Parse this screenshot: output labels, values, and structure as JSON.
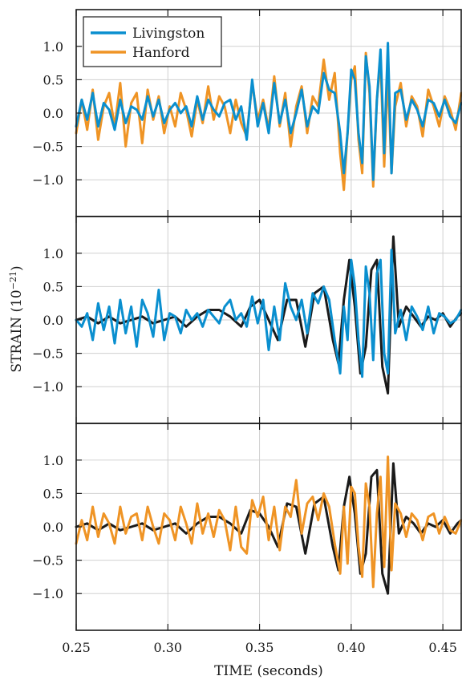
{
  "chart_data": {
    "type": "line",
    "xlabel": "TIME (seconds)",
    "ylabel": "STRAIN (10",
    "ylabel_exponent": "−21",
    "ylabel_close": ")",
    "xlim": [
      0.25,
      0.46
    ],
    "ylim": [
      -1.55,
      1.55
    ],
    "x_ticks": [
      0.25,
      0.3,
      0.35,
      0.4,
      0.45
    ],
    "x_tick_labels": [
      "0.25",
      "0.30",
      "0.35",
      "0.40",
      "0.45"
    ],
    "y_ticks": [
      1.0,
      0.5,
      0.0,
      -0.5,
      -1.0
    ],
    "y_tick_labels": [
      "1.0",
      "0.5",
      "0.0",
      "−0.5",
      "−1.0"
    ],
    "grid": true,
    "colors": {
      "livingston": "#0a8fcf",
      "hanford": "#ef9425",
      "model": "#1a1a1a"
    },
    "legend": {
      "location": "top-left",
      "entries": [
        {
          "label": "Livingston",
          "color": "#0a8fcf"
        },
        {
          "label": "Hanford",
          "color": "#ef9425"
        }
      ]
    },
    "panels": [
      {
        "series": [
          {
            "name": "Hanford",
            "color": "#ef9425",
            "x": [
              0.25,
              0.253,
              0.256,
              0.259,
              0.262,
              0.265,
              0.268,
              0.271,
              0.274,
              0.277,
              0.28,
              0.283,
              0.286,
              0.289,
              0.292,
              0.295,
              0.298,
              0.301,
              0.304,
              0.307,
              0.31,
              0.313,
              0.316,
              0.319,
              0.322,
              0.325,
              0.328,
              0.331,
              0.334,
              0.337,
              0.34,
              0.343,
              0.346,
              0.349,
              0.352,
              0.355,
              0.358,
              0.361,
              0.364,
              0.367,
              0.37,
              0.373,
              0.376,
              0.379,
              0.382,
              0.385,
              0.388,
              0.391,
              0.394,
              0.396,
              0.398,
              0.4,
              0.402,
              0.404,
              0.406,
              0.408,
              0.41,
              0.412,
              0.414,
              0.416,
              0.418,
              0.42,
              0.422,
              0.424,
              0.427,
              0.43,
              0.433,
              0.436,
              0.439,
              0.442,
              0.445,
              0.448,
              0.451,
              0.454,
              0.457,
              0.46
            ],
            "y": [
              -0.3,
              0.2,
              -0.25,
              0.35,
              -0.4,
              0.1,
              0.3,
              -0.2,
              0.45,
              -0.5,
              0.15,
              0.3,
              -0.45,
              0.35,
              -0.1,
              0.25,
              -0.3,
              0.1,
              -0.2,
              0.3,
              0.05,
              -0.35,
              0.2,
              -0.15,
              0.4,
              -0.1,
              0.25,
              0.1,
              -0.3,
              0.2,
              -0.15,
              -0.35,
              0.45,
              -0.1,
              0.2,
              -0.25,
              0.55,
              -0.2,
              0.3,
              -0.5,
              0.1,
              0.4,
              -0.3,
              0.25,
              0.1,
              0.8,
              0.2,
              0.6,
              -0.6,
              -1.15,
              -0.3,
              0.5,
              0.7,
              -0.4,
              -0.9,
              0.9,
              0.3,
              -1.1,
              0.2,
              0.8,
              -0.8,
              0.6,
              -0.9,
              0.1,
              0.45,
              -0.2,
              0.25,
              0.1,
              -0.35,
              0.35,
              0.1,
              -0.2,
              0.25,
              0.05,
              -0.25,
              0.3
            ]
          },
          {
            "name": "Livingston",
            "color": "#0a8fcf",
            "x": [
              0.25,
              0.253,
              0.256,
              0.259,
              0.262,
              0.265,
              0.268,
              0.271,
              0.274,
              0.277,
              0.28,
              0.283,
              0.286,
              0.289,
              0.292,
              0.295,
              0.298,
              0.301,
              0.304,
              0.307,
              0.31,
              0.313,
              0.316,
              0.319,
              0.322,
              0.325,
              0.328,
              0.331,
              0.334,
              0.337,
              0.34,
              0.343,
              0.346,
              0.349,
              0.352,
              0.355,
              0.358,
              0.361,
              0.364,
              0.367,
              0.37,
              0.373,
              0.376,
              0.379,
              0.382,
              0.385,
              0.388,
              0.391,
              0.394,
              0.396,
              0.398,
              0.4,
              0.402,
              0.404,
              0.406,
              0.408,
              0.41,
              0.412,
              0.414,
              0.416,
              0.418,
              0.42,
              0.422,
              0.424,
              0.427,
              0.43,
              0.433,
              0.436,
              0.439,
              0.442,
              0.445,
              0.448,
              0.451,
              0.454,
              0.457,
              0.46
            ],
            "y": [
              -0.2,
              0.2,
              -0.1,
              0.3,
              -0.2,
              0.15,
              0.05,
              -0.25,
              0.2,
              -0.15,
              0.1,
              0.05,
              -0.1,
              0.25,
              -0.05,
              0.2,
              -0.15,
              0.05,
              0.15,
              0.0,
              0.1,
              -0.2,
              0.25,
              -0.1,
              0.2,
              0.05,
              -0.05,
              0.15,
              0.2,
              -0.1,
              0.1,
              -0.4,
              0.5,
              -0.2,
              0.15,
              -0.3,
              0.45,
              -0.15,
              0.2,
              -0.3,
              0.0,
              0.35,
              -0.2,
              0.1,
              0.0,
              0.6,
              0.35,
              0.3,
              -0.3,
              -0.9,
              -0.3,
              0.65,
              0.5,
              -0.3,
              -0.75,
              0.85,
              0.4,
              -1.0,
              0.2,
              0.95,
              -0.6,
              1.05,
              -0.9,
              0.3,
              0.35,
              -0.1,
              0.2,
              0.05,
              -0.2,
              0.2,
              0.15,
              -0.05,
              0.2,
              -0.05,
              -0.15,
              0.15
            ]
          }
        ]
      },
      {
        "series": [
          {
            "name": "Model",
            "color": "#1a1a1a",
            "x": [
              0.25,
              0.256,
              0.262,
              0.268,
              0.274,
              0.28,
              0.286,
              0.292,
              0.298,
              0.304,
              0.31,
              0.316,
              0.322,
              0.328,
              0.334,
              0.34,
              0.345,
              0.35,
              0.355,
              0.36,
              0.365,
              0.37,
              0.375,
              0.38,
              0.385,
              0.39,
              0.393,
              0.396,
              0.399,
              0.402,
              0.405,
              0.408,
              0.411,
              0.414,
              0.417,
              0.42,
              0.423,
              0.426,
              0.43,
              0.434,
              0.438,
              0.442,
              0.446,
              0.45,
              0.454,
              0.458,
              0.46
            ],
            "y": [
              0.0,
              0.05,
              -0.05,
              0.05,
              -0.05,
              0.0,
              0.05,
              -0.05,
              0.0,
              0.05,
              -0.1,
              0.05,
              0.15,
              0.15,
              0.05,
              -0.1,
              0.2,
              0.3,
              0.0,
              -0.3,
              0.3,
              0.3,
              -0.4,
              0.4,
              0.5,
              -0.3,
              -0.65,
              0.3,
              0.9,
              0.2,
              -0.8,
              -0.4,
              0.75,
              0.9,
              -0.7,
              -1.1,
              1.25,
              -0.1,
              0.2,
              0.05,
              -0.1,
              0.05,
              0.0,
              0.1,
              -0.1,
              0.05,
              0.1
            ]
          },
          {
            "name": "Livingston",
            "color": "#0a8fcf",
            "x": [
              0.25,
              0.253,
              0.256,
              0.259,
              0.262,
              0.265,
              0.268,
              0.271,
              0.274,
              0.277,
              0.28,
              0.283,
              0.286,
              0.289,
              0.292,
              0.295,
              0.298,
              0.301,
              0.304,
              0.307,
              0.31,
              0.313,
              0.316,
              0.319,
              0.322,
              0.325,
              0.328,
              0.331,
              0.334,
              0.337,
              0.34,
              0.343,
              0.346,
              0.349,
              0.352,
              0.355,
              0.358,
              0.361,
              0.364,
              0.367,
              0.37,
              0.373,
              0.376,
              0.379,
              0.382,
              0.385,
              0.388,
              0.391,
              0.394,
              0.396,
              0.398,
              0.4,
              0.402,
              0.404,
              0.406,
              0.408,
              0.41,
              0.412,
              0.414,
              0.416,
              0.418,
              0.42,
              0.422,
              0.424,
              0.427,
              0.43,
              0.433,
              0.436,
              0.439,
              0.442,
              0.445,
              0.448,
              0.451,
              0.454,
              0.457,
              0.46
            ],
            "y": [
              0.0,
              -0.1,
              0.1,
              -0.3,
              0.25,
              -0.15,
              0.2,
              -0.35,
              0.3,
              -0.2,
              0.2,
              -0.4,
              0.3,
              0.1,
              -0.25,
              0.45,
              -0.3,
              0.1,
              0.05,
              -0.2,
              0.15,
              0.0,
              0.1,
              -0.1,
              0.15,
              0.05,
              -0.05,
              0.2,
              0.3,
              0.0,
              0.1,
              -0.1,
              0.35,
              -0.05,
              0.3,
              -0.45,
              0.2,
              -0.3,
              0.55,
              0.2,
              0.0,
              0.3,
              -0.2,
              0.4,
              0.25,
              0.5,
              0.3,
              -0.3,
              -0.8,
              0.2,
              -0.3,
              0.9,
              0.5,
              -0.3,
              -0.85,
              0.8,
              0.4,
              -0.6,
              0.7,
              0.9,
              -0.5,
              -0.8,
              1.05,
              -0.2,
              0.15,
              -0.3,
              0.2,
              0.05,
              -0.15,
              0.2,
              -0.2,
              0.1,
              0.05,
              -0.05,
              0.0,
              0.15
            ]
          }
        ]
      },
      {
        "series": [
          {
            "name": "Model",
            "color": "#1a1a1a",
            "x": [
              0.25,
              0.256,
              0.262,
              0.268,
              0.274,
              0.28,
              0.286,
              0.292,
              0.298,
              0.304,
              0.31,
              0.316,
              0.322,
              0.328,
              0.334,
              0.34,
              0.345,
              0.35,
              0.355,
              0.36,
              0.365,
              0.37,
              0.375,
              0.38,
              0.385,
              0.39,
              0.393,
              0.396,
              0.399,
              0.402,
              0.405,
              0.408,
              0.411,
              0.414,
              0.417,
              0.42,
              0.423,
              0.426,
              0.43,
              0.434,
              0.438,
              0.442,
              0.446,
              0.45,
              0.454,
              0.458,
              0.46
            ],
            "y": [
              0.0,
              0.05,
              -0.05,
              0.05,
              -0.05,
              0.0,
              0.05,
              -0.05,
              0.0,
              0.05,
              -0.1,
              0.05,
              0.15,
              0.15,
              0.05,
              -0.1,
              0.25,
              0.2,
              0.0,
              -0.3,
              0.35,
              0.3,
              -0.4,
              0.35,
              0.45,
              -0.3,
              -0.65,
              0.3,
              0.75,
              0.2,
              -0.7,
              -0.4,
              0.75,
              0.85,
              -0.7,
              -1.0,
              0.95,
              -0.1,
              0.15,
              0.05,
              -0.1,
              0.05,
              0.0,
              0.1,
              -0.1,
              0.05,
              0.1
            ]
          },
          {
            "name": "Hanford",
            "color": "#ef9425",
            "x": [
              0.25,
              0.253,
              0.256,
              0.259,
              0.262,
              0.265,
              0.268,
              0.271,
              0.274,
              0.277,
              0.28,
              0.283,
              0.286,
              0.289,
              0.292,
              0.295,
              0.298,
              0.301,
              0.304,
              0.307,
              0.31,
              0.313,
              0.316,
              0.319,
              0.322,
              0.325,
              0.328,
              0.331,
              0.334,
              0.337,
              0.34,
              0.343,
              0.346,
              0.349,
              0.352,
              0.355,
              0.358,
              0.361,
              0.364,
              0.367,
              0.37,
              0.373,
              0.376,
              0.379,
              0.382,
              0.385,
              0.388,
              0.391,
              0.394,
              0.396,
              0.398,
              0.4,
              0.402,
              0.404,
              0.406,
              0.408,
              0.41,
              0.412,
              0.414,
              0.416,
              0.418,
              0.42,
              0.422,
              0.424,
              0.427,
              0.43,
              0.433,
              0.436,
              0.439,
              0.442,
              0.445,
              0.448,
              0.451,
              0.454,
              0.457,
              0.46
            ],
            "y": [
              -0.25,
              0.1,
              -0.2,
              0.3,
              -0.15,
              0.2,
              0.05,
              -0.25,
              0.3,
              -0.1,
              0.15,
              0.2,
              -0.2,
              0.3,
              0.0,
              -0.25,
              0.2,
              0.1,
              -0.2,
              0.3,
              0.05,
              -0.25,
              0.35,
              -0.1,
              0.2,
              -0.15,
              0.25,
              0.1,
              -0.35,
              0.3,
              -0.3,
              -0.4,
              0.4,
              0.15,
              0.45,
              -0.2,
              0.3,
              -0.35,
              0.3,
              0.15,
              0.7,
              -0.1,
              0.35,
              0.45,
              0.1,
              0.5,
              0.3,
              -0.25,
              -0.7,
              0.3,
              -0.55,
              0.6,
              0.5,
              -0.3,
              -0.75,
              0.65,
              0.3,
              -0.9,
              0.2,
              0.75,
              -0.6,
              1.05,
              -0.65,
              0.35,
              0.2,
              -0.15,
              0.2,
              0.1,
              -0.2,
              0.15,
              0.2,
              -0.1,
              0.15,
              -0.05,
              -0.1,
              0.1
            ]
          }
        ]
      }
    ]
  }
}
